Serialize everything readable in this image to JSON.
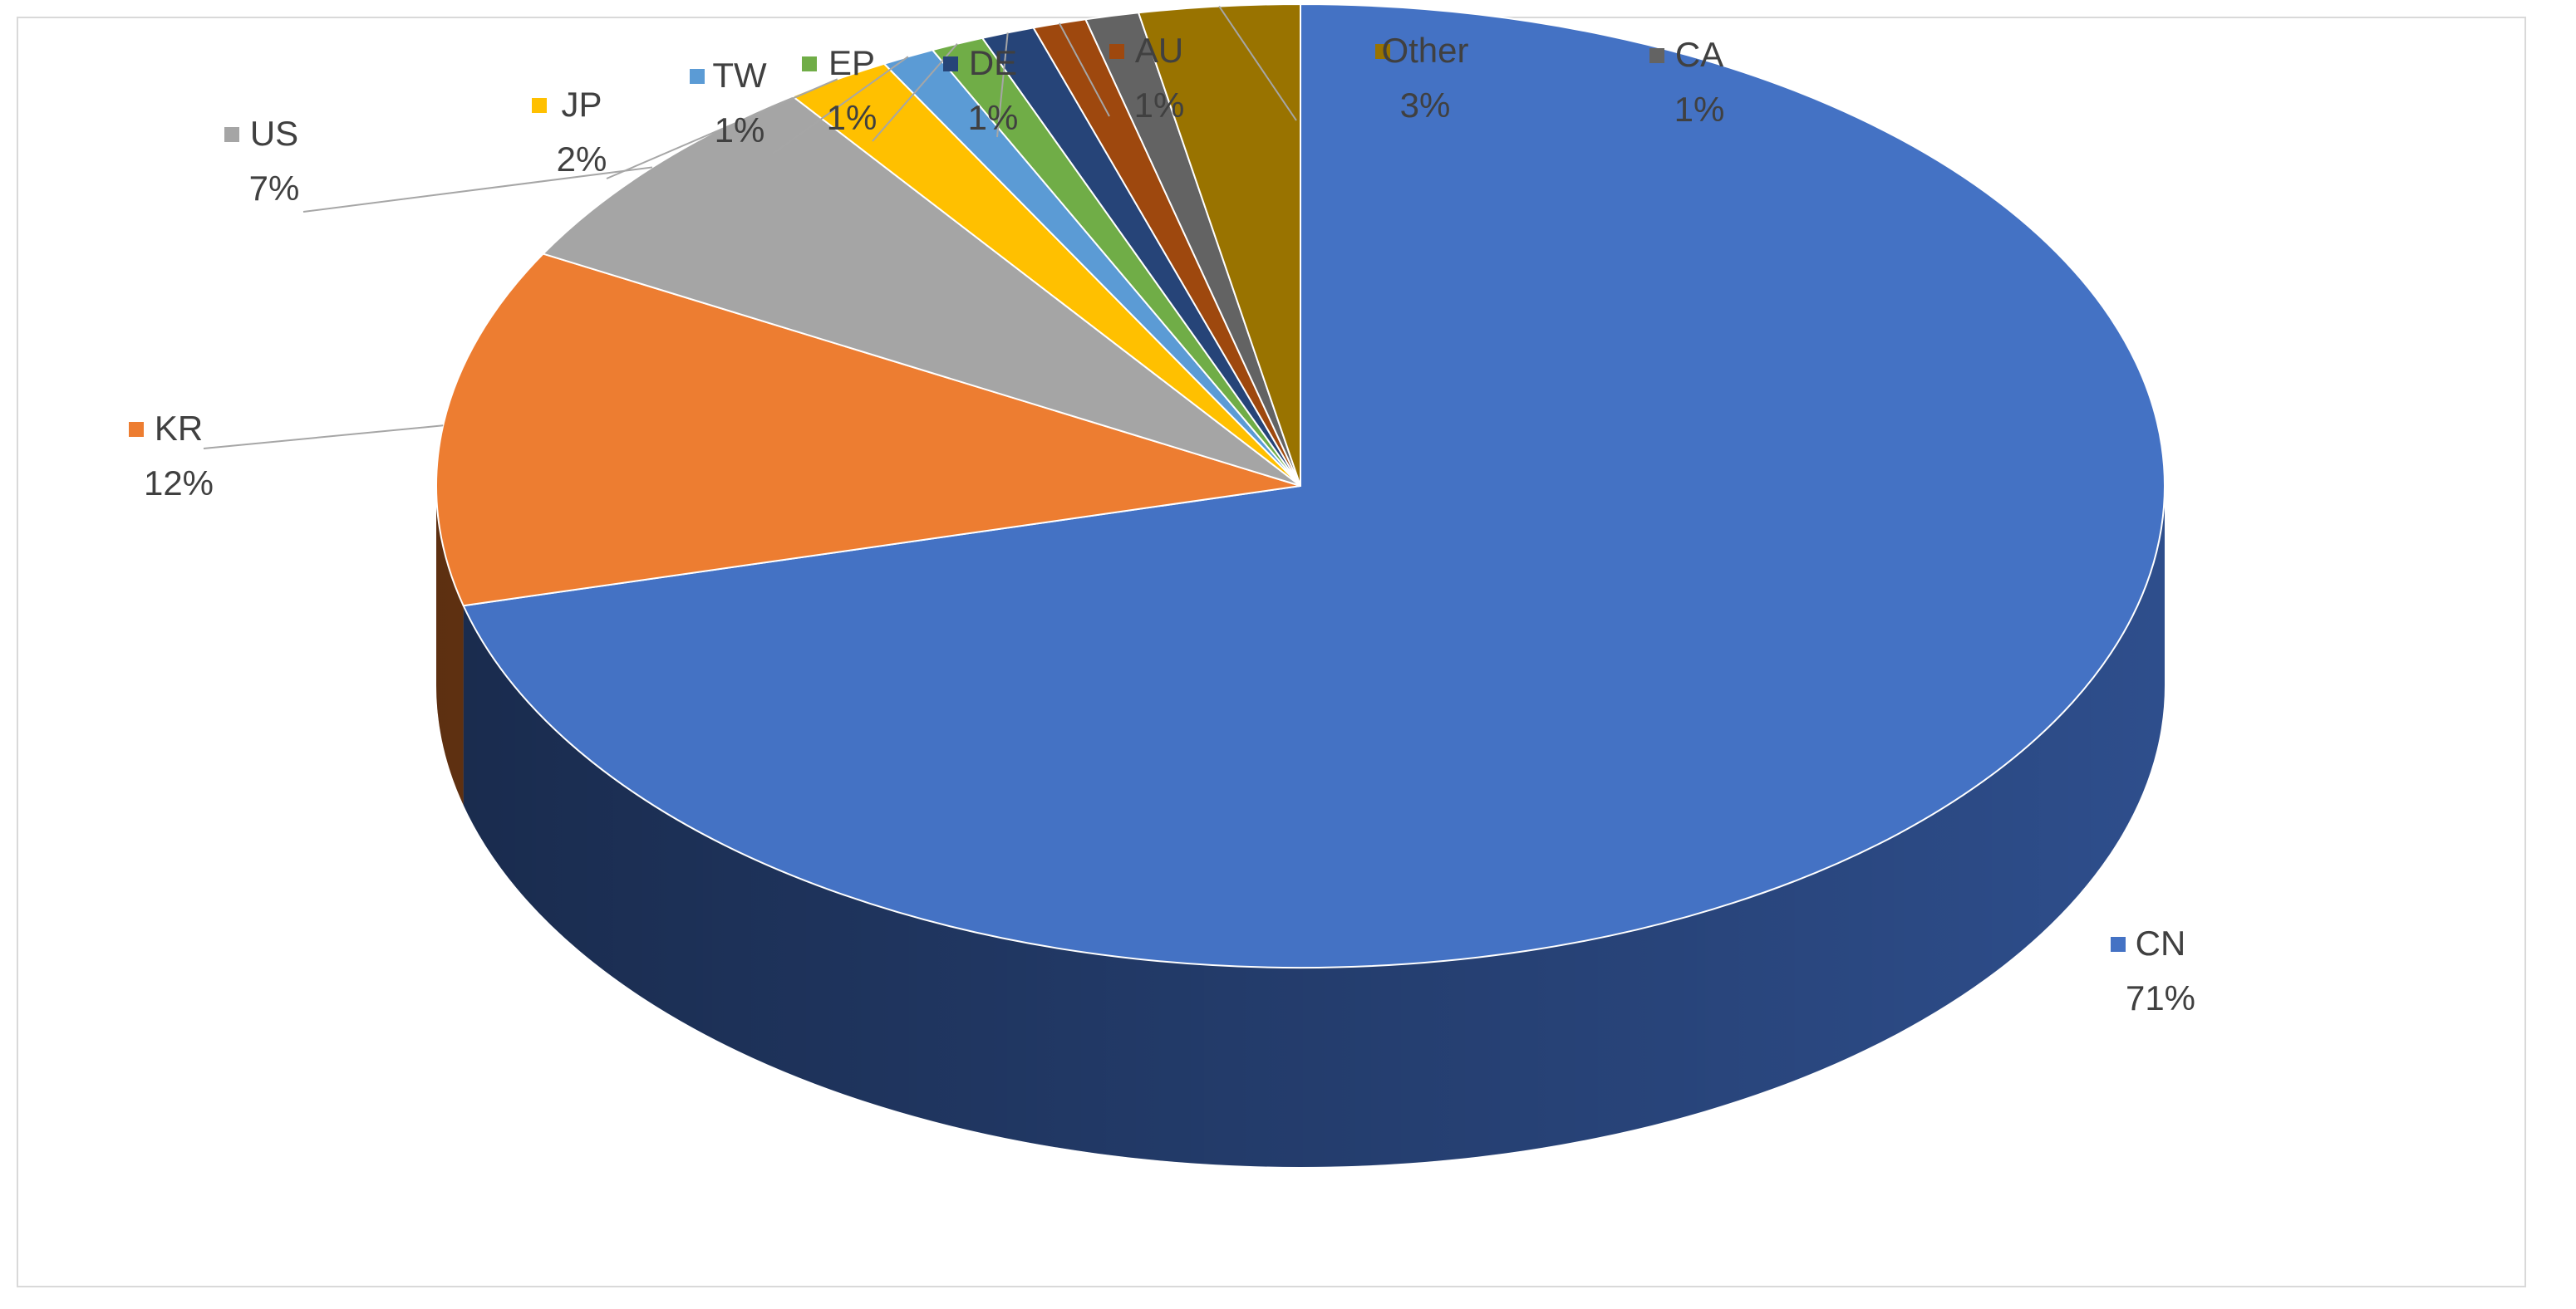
{
  "chart_data": {
    "type": "pie",
    "variant": "3d",
    "title": "",
    "slices": [
      {
        "label": "CN",
        "value": 71,
        "display": "71%",
        "color": "#4472C4",
        "side_color": "#2E4E8C"
      },
      {
        "label": "KR",
        "value": 12,
        "display": "12%",
        "color": "#ED7D31",
        "side_color": "#A9561F"
      },
      {
        "label": "US",
        "value": 7,
        "display": "7%",
        "color": "#A5A5A5",
        "side_color": "#767676"
      },
      {
        "label": "JP",
        "value": 2,
        "display": "2%",
        "color": "#FFC000",
        "side_color": "#B88900"
      },
      {
        "label": "TW",
        "value": 1,
        "display": "1%",
        "color": "#5B9BD5",
        "side_color": "#3E6F9E"
      },
      {
        "label": "EP",
        "value": 1,
        "display": "1%",
        "color": "#70AD47",
        "side_color": "#4E7D30"
      },
      {
        "label": "DE",
        "value": 1,
        "display": "1%",
        "color": "#264478",
        "side_color": "#1A2F55"
      },
      {
        "label": "AU",
        "value": 1,
        "display": "1%",
        "color": "#9E480E",
        "side_color": "#6E3209"
      },
      {
        "label": "CA",
        "value": 1,
        "display": "1%",
        "color": "#636363",
        "side_color": "#454545"
      },
      {
        "label": "Other",
        "value": 3,
        "display": "3%",
        "color": "#997300",
        "side_color": "#6B5000"
      }
    ],
    "legend": "none",
    "data_labels": "category-and-percent"
  }
}
